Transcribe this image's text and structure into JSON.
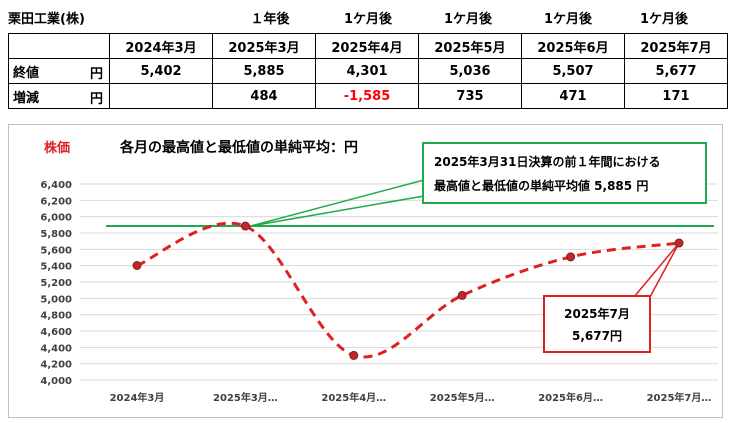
{
  "company": "栗田工業(株)",
  "table": {
    "period_labels": [
      "１年後",
      "1ケ月後",
      "1ケ月後",
      "1ケ月後",
      "1ケ月後"
    ],
    "columns": [
      "2024年3月",
      "2025年3月",
      "2025年4月",
      "2025年5月",
      "2025年6月",
      "2025年7月"
    ],
    "rows": [
      {
        "label": "終値",
        "unit": "円",
        "values": [
          "5,402",
          "5,885",
          "4,301",
          "5,036",
          "5,507",
          "5,677"
        ]
      },
      {
        "label": "増減",
        "unit": "円",
        "values": [
          "",
          "484",
          "-1,585",
          "735",
          "471",
          "171"
        ]
      }
    ]
  },
  "colors": {
    "line": "#e02020",
    "point": "#c0272d",
    "reference": "#1faa4d",
    "negative": "#ff0000",
    "grid": "#d9d9d9"
  },
  "chart_data": {
    "type": "line",
    "title": "各月の最高値と最低値の単純平均：円",
    "ylabel": "株価",
    "categories": [
      "2024年3月",
      "2025年3月…",
      "2025年4月…",
      "2025年5月…",
      "2025年6月…",
      "2025年7月…"
    ],
    "series": [
      {
        "values": [
          5402,
          5885,
          4301,
          5036,
          5507,
          5677
        ]
      }
    ],
    "reference_line": 5885,
    "ylim": [
      4000,
      6400
    ],
    "ytick_step": 200,
    "grid": true,
    "annotations": [
      {
        "line1": "2025年3月31日決算の前１年間における",
        "line2": "最高値と最低値の単純平均値 5,885 円"
      },
      {
        "line1": "2025年7月",
        "line2": "5,677円"
      }
    ]
  }
}
